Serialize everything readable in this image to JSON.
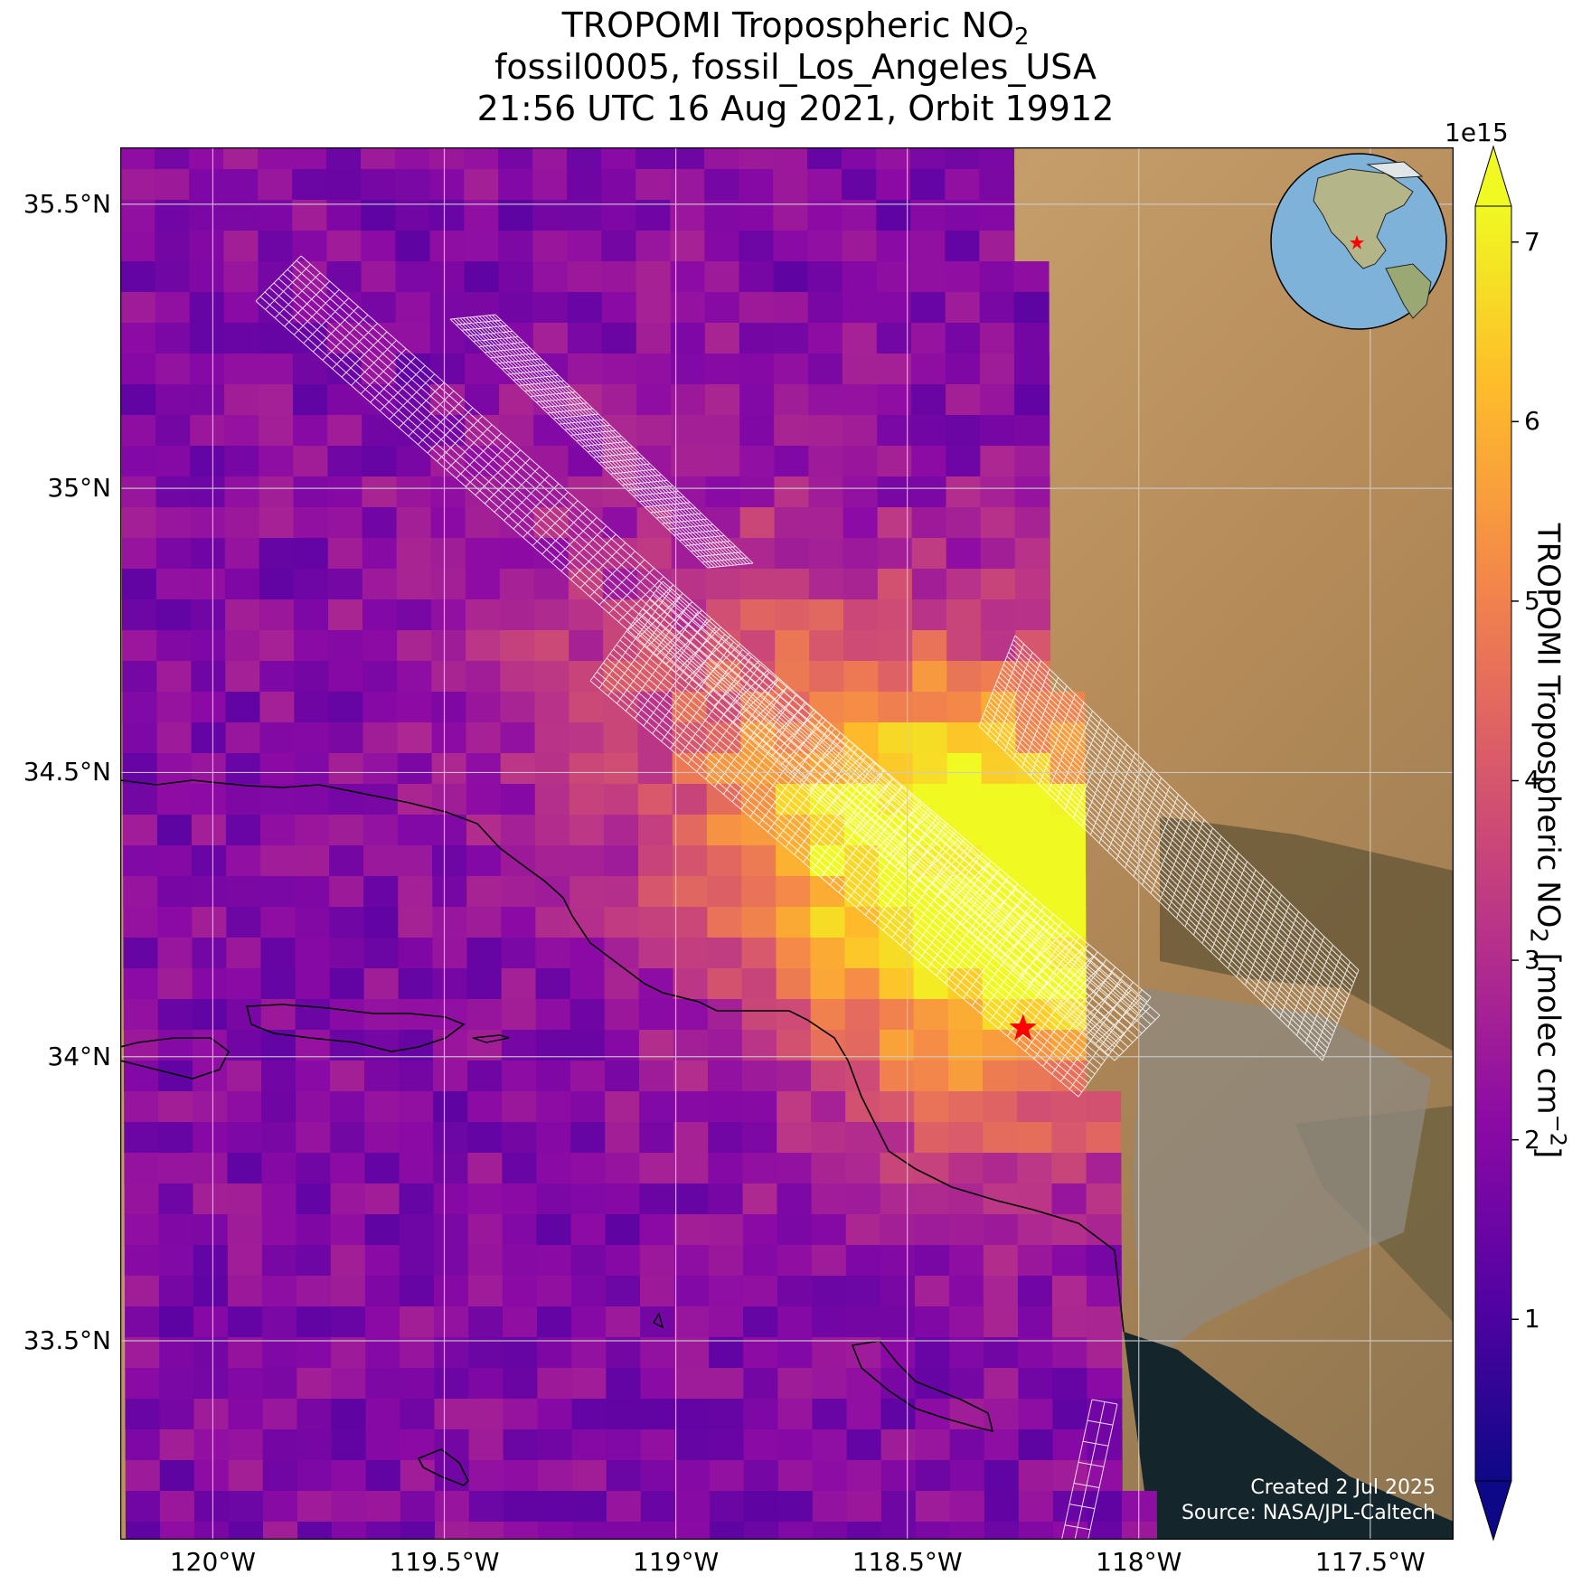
{
  "title": {
    "line1_prefix": "TROPOMI Tropospheric NO",
    "line1_sub": "2",
    "line2": "fossil0005, fossil_Los_Angeles_USA",
    "line3": "21:56 UTC 16 Aug 2021, Orbit 19912"
  },
  "map": {
    "lon_range": [
      -120.2,
      -117.32
    ],
    "lat_range": [
      33.15,
      35.6
    ],
    "lat_ticks": [
      {
        "value": 35.5,
        "label": "35.5°N"
      },
      {
        "value": 35.0,
        "label": "35°N"
      },
      {
        "value": 34.5,
        "label": "34.5°N"
      },
      {
        "value": 34.0,
        "label": "34°N"
      },
      {
        "value": 33.5,
        "label": "33.5°N"
      }
    ],
    "lon_ticks": [
      {
        "value": -120.0,
        "label": "120°W"
      },
      {
        "value": -119.5,
        "label": "119.5°W"
      },
      {
        "value": -119.0,
        "label": "119°W"
      },
      {
        "value": -118.5,
        "label": "118.5°W"
      },
      {
        "value": -118.0,
        "label": "118°W"
      },
      {
        "value": -117.5,
        "label": "117.5°W"
      }
    ],
    "target_marker": {
      "lon": -118.25,
      "lat": 34.05,
      "color": "#ff0000"
    },
    "gridline_color": "#cccccc"
  },
  "credit": {
    "line1": "Created 2 Jul 2025",
    "line2": "Source: NASA/JPL-Caltech"
  },
  "colorbar": {
    "exponent_label": "1e15",
    "label_prefix": "TROPOMI Tropospheric NO",
    "label_sub": "2",
    "label_units": " [molec cm",
    "label_sup": "−2",
    "label_close": "]",
    "min": 0.1,
    "max": 7.2,
    "colormap": "plasma",
    "extend": "both",
    "ticks": [
      {
        "value": 1,
        "label": "1"
      },
      {
        "value": 2,
        "label": "2"
      },
      {
        "value": 3,
        "label": "3"
      },
      {
        "value": 4,
        "label": "4"
      },
      {
        "value": 5,
        "label": "5"
      },
      {
        "value": 6,
        "label": "6"
      },
      {
        "value": 7,
        "label": "7"
      }
    ]
  },
  "colors": {
    "ocean_dark": "#14252b",
    "desert": "#b8915e",
    "mountain": "#6b5a3a",
    "plasma": [
      "#0d0887",
      "#5302a3",
      "#8b0aa5",
      "#b83289",
      "#db5c68",
      "#f48849",
      "#febc2a",
      "#f0f921"
    ]
  }
}
